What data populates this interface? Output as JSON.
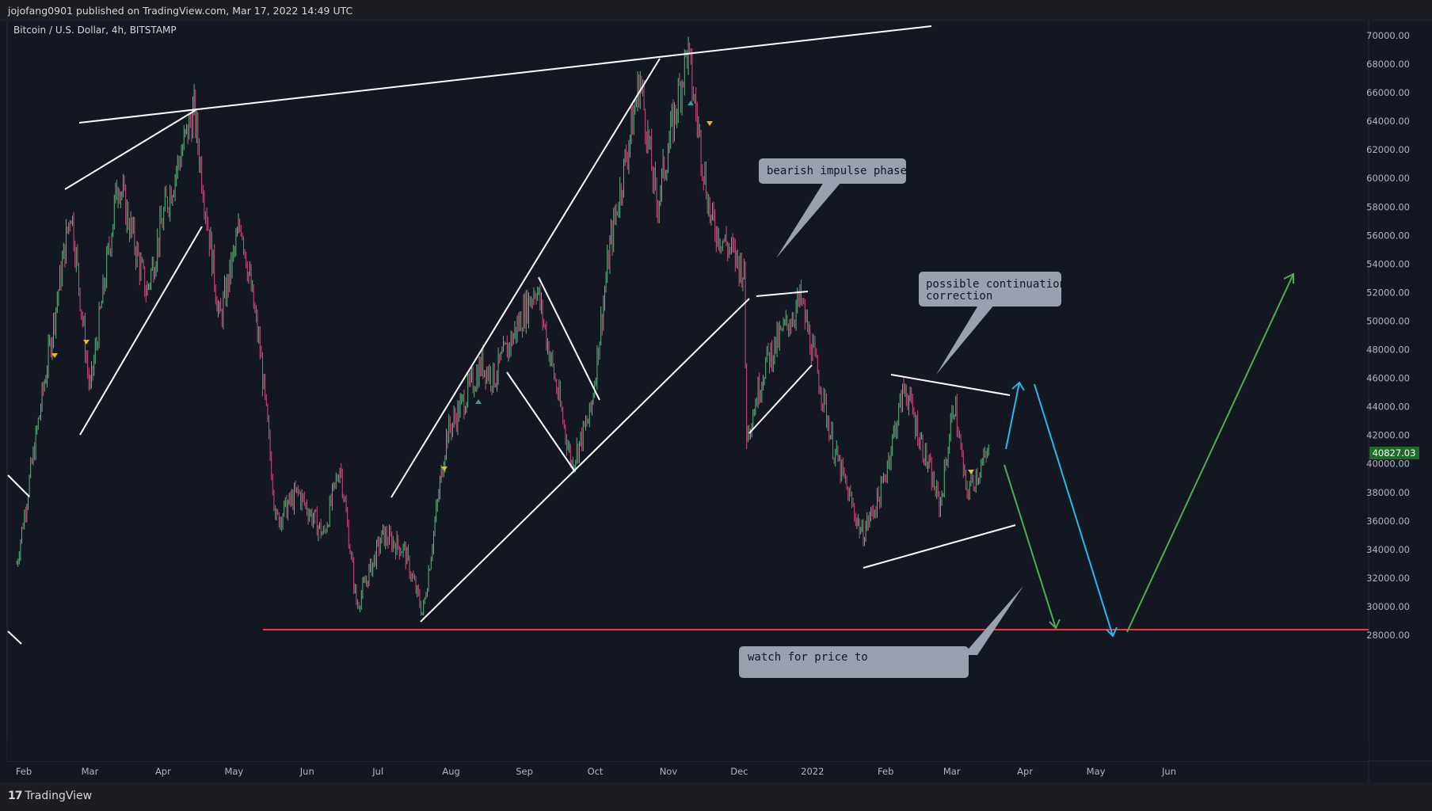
{
  "header": {
    "published": "jojofang0901 published on TradingView.com, Mar 17, 2022 14:49 UTC"
  },
  "symbol": "Bitcoin / U.S. Dollar, 4h, BITSTAMP",
  "footer": {
    "brand": "TradingView",
    "logo": "17"
  },
  "colors": {
    "bg": "#131722",
    "up": "#26a69a",
    "down": "#ef5350",
    "candle_up": "#5fb37d",
    "candle_down": "#d84a7e",
    "line": "#ffffff",
    "support": "#f23645",
    "cyan": "#2bb7e8",
    "green": "#4caf50",
    "price_tag": "#1e6b2a",
    "callout": "#9aa0ad"
  },
  "chart_data": {
    "type": "line",
    "title": "Bitcoin / U.S. Dollar, 4h, BITSTAMP",
    "ylim": [
      27000,
      71000
    ],
    "y_ticks": [
      "70000.00",
      "68000.00",
      "66000.00",
      "64000.00",
      "62000.00",
      "60000.00",
      "58000.00",
      "56000.00",
      "54000.00",
      "52000.00",
      "50000.00",
      "48000.00",
      "46000.00",
      "44000.00",
      "42000.00",
      "40000.00",
      "38000.00",
      "36000.00",
      "34000.00",
      "32000.00",
      "30000.00",
      "28000.00"
    ],
    "x_ticks": [
      "Feb",
      "Mar",
      "Apr",
      "May",
      "Jun",
      "Jul",
      "Aug",
      "Sep",
      "Oct",
      "Nov",
      "Dec",
      "2022",
      "Feb",
      "Mar",
      "Apr",
      "May",
      "Jun"
    ],
    "last_price": "40827.03",
    "series": [
      {
        "name": "",
        "x": [
          "2021-01-29",
          "2021-02-10",
          "2021-02-21",
          "2021-03-01",
          "2021-03-13",
          "2021-03-25",
          "2021-04-02",
          "2021-04-14",
          "2021-04-25",
          "2021-05-04",
          "2021-05-12",
          "2021-05-19",
          "2021-05-28",
          "2021-06-08",
          "2021-06-15",
          "2021-06-22",
          "2021-07-03",
          "2021-07-12",
          "2021-07-20",
          "2021-07-30",
          "2021-08-14",
          "2021-08-19",
          "2021-09-06",
          "2021-09-21",
          "2021-09-29",
          "2021-10-07",
          "2021-10-20",
          "2021-10-27",
          "2021-11-09",
          "2021-11-19",
          "2021-12-03",
          "2021-12-04",
          "2021-12-12",
          "2021-12-27",
          "2022-01-05",
          "2022-01-10",
          "2022-01-22",
          "2022-01-30",
          "2022-02-09",
          "2022-02-24",
          "2022-03-02",
          "2022-03-07",
          "2022-03-17"
        ],
        "y": [
          33000,
          46000,
          58000,
          45000,
          60000,
          52000,
          58000,
          64800,
          50000,
          57000,
          48000,
          36000,
          38000,
          35000,
          40000,
          30000,
          35000,
          34000,
          29500,
          42000,
          47000,
          46000,
          52500,
          40000,
          43500,
          55000,
          67000,
          58000,
          69000,
          57000,
          53500,
          42000,
          47000,
          51500,
          45000,
          41000,
          35000,
          38000,
          45500,
          37000,
          44500,
          38000,
          40827
        ]
      }
    ],
    "annotations": [
      "bearish impulse phase",
      "possible continuation correction",
      "watch for price to"
    ]
  }
}
